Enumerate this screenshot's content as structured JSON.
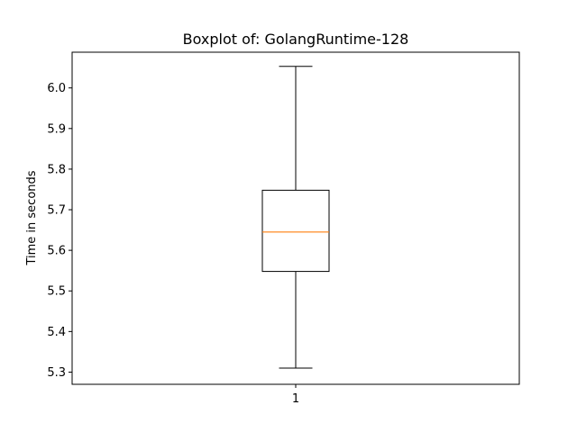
{
  "chart_data": {
    "type": "boxplot",
    "title": "Boxplot of: GolangRuntime-128",
    "xlabel": "",
    "ylabel": "Time in seconds",
    "categories": [
      "1"
    ],
    "ylim": [
      5.27,
      6.088
    ],
    "yticks": [
      5.3,
      5.4,
      5.5,
      5.6,
      5.7,
      5.8,
      5.9,
      6.0
    ],
    "ytick_labels": [
      "5.3",
      "5.4",
      "5.5",
      "5.6",
      "5.7",
      "5.8",
      "5.9",
      "6.0"
    ],
    "boxes": [
      {
        "category": "1",
        "whisker_low": 5.31,
        "q1": 5.548,
        "median": 5.645,
        "q3": 5.748,
        "whisker_high": 6.053
      }
    ],
    "grid": false,
    "colors": {
      "box": "#000000",
      "median": "#ff7f0e",
      "whisker": "#000000"
    }
  }
}
